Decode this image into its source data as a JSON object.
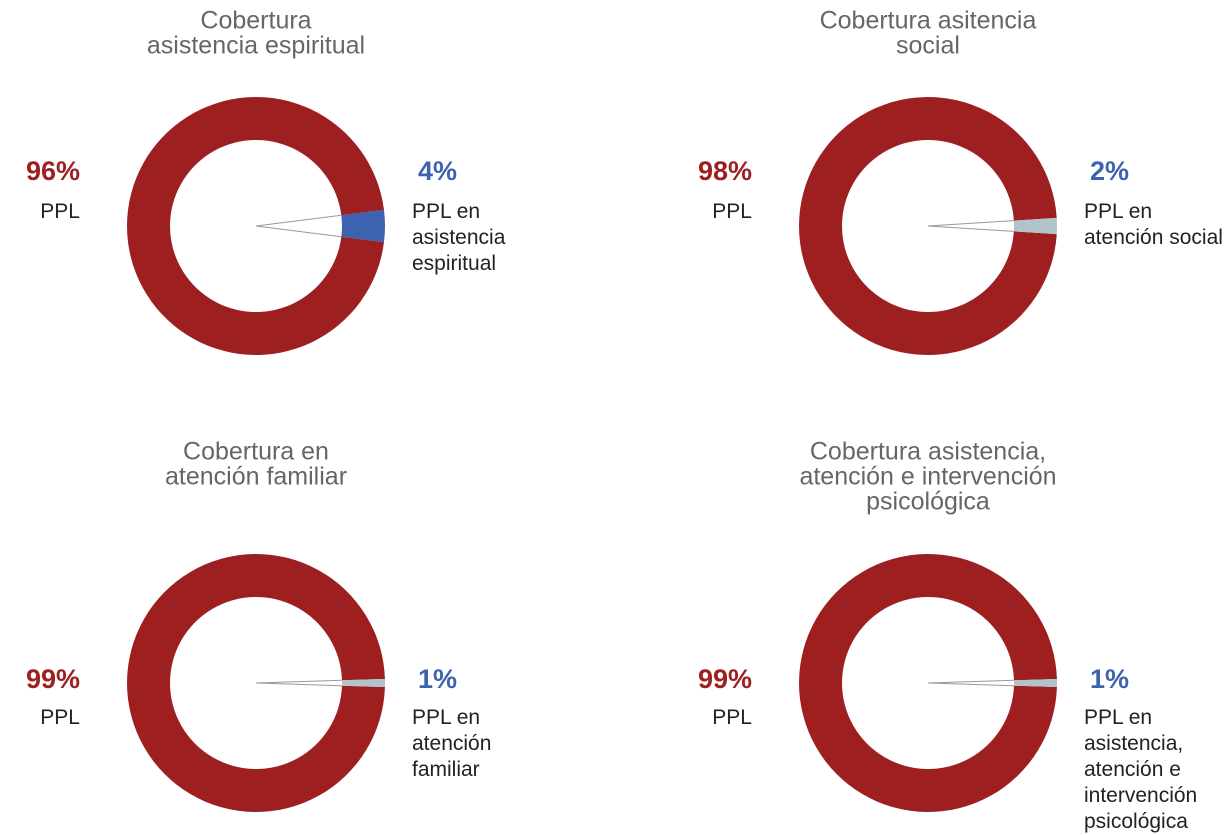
{
  "chart_data": [
    {
      "type": "donut",
      "title": [
        "Cobertura",
        "asistencia espiritual"
      ],
      "categories": [
        "PPL",
        "PPL en asistencia espiritual"
      ],
      "values": [
        96,
        4
      ],
      "value_labels": [
        "96%",
        "4%"
      ],
      "colors": [
        "#9e1f20",
        "#3d62b0"
      ],
      "label_colors": [
        "#9e1f20",
        "#3d62b0"
      ]
    },
    {
      "type": "donut",
      "title": [
        "Cobertura asitencia",
        "social"
      ],
      "categories": [
        "PPL",
        "PPL en atención social"
      ],
      "values": [
        98,
        2
      ],
      "value_labels": [
        "98%",
        "2%"
      ],
      "colors": [
        "#9e1f20",
        "#b1c4cc"
      ],
      "label_colors": [
        "#9e1f20",
        "#3d62b0"
      ]
    },
    {
      "type": "donut",
      "title": [
        "Cobertura en",
        "atención familiar"
      ],
      "categories": [
        "PPL",
        "PPL en atención familiar"
      ],
      "values": [
        99,
        1
      ],
      "value_labels": [
        "99%",
        "1%"
      ],
      "colors": [
        "#9e1f20",
        "#b1c4cc"
      ],
      "label_colors": [
        "#9e1f20",
        "#3d62b0"
      ]
    },
    {
      "type": "donut",
      "title": [
        "Cobertura asistencia,",
        "atención e intervención",
        "psicológica"
      ],
      "categories": [
        "PPL",
        "PPL en asistencia, atención e intervención psicológica"
      ],
      "values": [
        99,
        1
      ],
      "value_labels": [
        "99%",
        "1%"
      ],
      "colors": [
        "#9e1f20",
        "#b1c4cc"
      ],
      "label_colors": [
        "#9e1f20",
        "#3d62b0"
      ]
    }
  ]
}
